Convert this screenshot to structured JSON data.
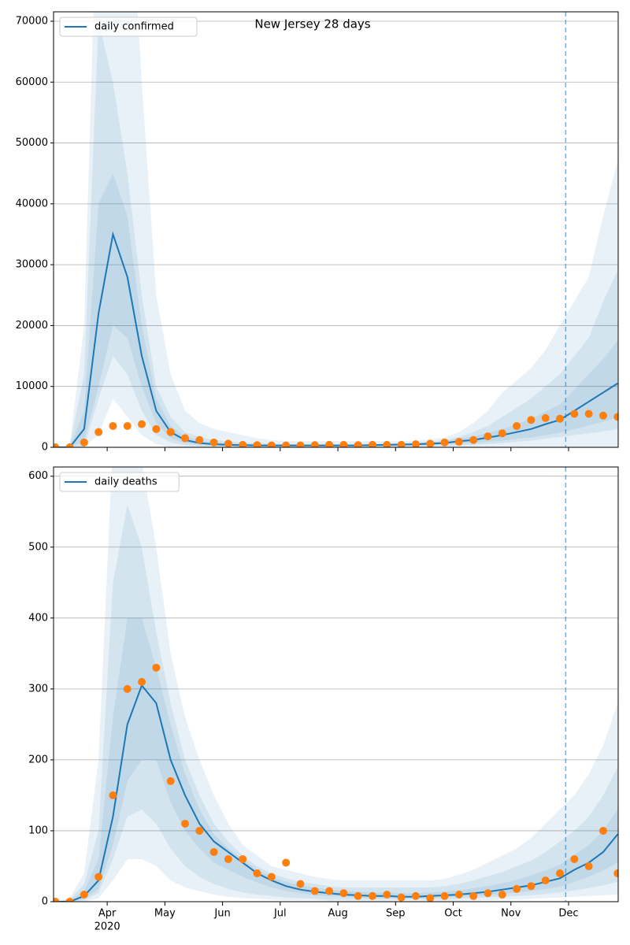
{
  "chart_data": [
    {
      "type": "line",
      "title": "New Jersey 28 days",
      "x": [
        3.1,
        3.35,
        3.6,
        3.85,
        4.1,
        4.35,
        4.6,
        4.85,
        5.1,
        5.35,
        5.6,
        5.85,
        6.1,
        6.35,
        6.6,
        6.85,
        7.1,
        7.35,
        7.6,
        7.85,
        8.1,
        8.35,
        8.6,
        8.85,
        9.1,
        9.35,
        9.6,
        9.85,
        10.1,
        10.35,
        10.6,
        10.85,
        11.1,
        11.35,
        11.6,
        11.85,
        12.1,
        12.35,
        12.6,
        12.85
      ],
      "series": [
        {
          "name": "daily confirmed",
          "color": "#1f77b4",
          "values": [
            0,
            0,
            3000,
            22000,
            35000,
            28000,
            15000,
            6000,
            2500,
            1200,
            700,
            500,
            400,
            350,
            300,
            300,
            300,
            300,
            300,
            300,
            300,
            300,
            350,
            400,
            450,
            500,
            600,
            700,
            1000,
            1200,
            1600,
            2000,
            2500,
            3000,
            3800,
            4500,
            6000,
            7500,
            9000,
            10500
          ]
        }
      ],
      "observed": {
        "color": "#ff7f0e",
        "values": [
          0,
          0,
          800,
          2500,
          3500,
          3500,
          3800,
          3000,
          2500,
          1500,
          1200,
          800,
          600,
          400,
          350,
          300,
          300,
          300,
          350,
          400,
          400,
          350,
          400,
          400,
          400,
          500,
          600,
          800,
          900,
          1200,
          1800,
          2300,
          3500,
          4500,
          4800,
          4700,
          5500,
          5500,
          5200,
          5000
        ]
      },
      "band_color": "#1f77b4",
      "bands": [
        {
          "hi": [
            0,
            200,
            20000,
            100000,
            100000,
            100000,
            60000,
            25000,
            12000,
            6000,
            4000,
            3000,
            2500,
            2000,
            1500,
            1200,
            1000,
            1000,
            1000,
            1000,
            1000,
            1000,
            1000,
            1000,
            1000,
            1100,
            1300,
            1600,
            2500,
            4000,
            6000,
            9000,
            11000,
            13000,
            16000,
            20000,
            24000,
            28000,
            38000,
            47000
          ],
          "lo": [
            0,
            0,
            0,
            2000,
            8000,
            5000,
            2000,
            500,
            0,
            0,
            0,
            0,
            0,
            0,
            0,
            0,
            0,
            0,
            0,
            0,
            0,
            0,
            0,
            0,
            0,
            0,
            0,
            0,
            0,
            0,
            0,
            0,
            0,
            0,
            0,
            0,
            0,
            0,
            0,
            0
          ]
        },
        {
          "hi": [
            0,
            100,
            12000,
            70000,
            60000,
            45000,
            25000,
            10000,
            5000,
            2500,
            1700,
            1200,
            1000,
            800,
            700,
            600,
            500,
            500,
            500,
            500,
            500,
            500,
            600,
            600,
            700,
            800,
            900,
            1200,
            1700,
            2500,
            3500,
            5000,
            6500,
            8000,
            10000,
            12000,
            15000,
            18000,
            24000,
            29000
          ],
          "lo": [
            0,
            0,
            0,
            8000,
            15000,
            12000,
            6000,
            2000,
            800,
            300,
            150,
            100,
            80,
            60,
            50,
            50,
            50,
            50,
            50,
            50,
            50,
            50,
            60,
            80,
            100,
            120,
            150,
            200,
            300,
            400,
            500,
            700,
            900,
            1100,
            1400,
            1700,
            2000,
            2300,
            2600,
            3000
          ]
        },
        {
          "hi": [
            0,
            50,
            6000,
            40000,
            45000,
            38000,
            20000,
            8000,
            3500,
            1800,
            1100,
            800,
            650,
            550,
            480,
            450,
            430,
            420,
            420,
            420,
            420,
            420,
            480,
            550,
            620,
            700,
            820,
            1000,
            1400,
            1800,
            2400,
            3000,
            3800,
            4700,
            5900,
            7000,
            9500,
            12000,
            14500,
            17500
          ],
          "lo": [
            0,
            0,
            1000,
            10000,
            20000,
            18000,
            10000,
            4000,
            1500,
            700,
            400,
            300,
            230,
            200,
            170,
            170,
            170,
            170,
            170,
            170,
            170,
            170,
            200,
            230,
            260,
            300,
            350,
            420,
            600,
            700,
            900,
            1100,
            1400,
            1600,
            2000,
            2400,
            3000,
            3600,
            4200,
            4900
          ]
        }
      ],
      "vline": 11.95,
      "xlim": [
        3.07,
        12.86
      ],
      "ylim": [
        0,
        71550
      ],
      "yticks": [
        0,
        10000,
        20000,
        30000,
        40000,
        50000,
        60000,
        70000
      ],
      "grid": true,
      "legend": "upper left"
    },
    {
      "type": "line",
      "x": [
        3.1,
        3.35,
        3.6,
        3.85,
        4.1,
        4.35,
        4.6,
        4.85,
        5.1,
        5.35,
        5.6,
        5.85,
        6.1,
        6.35,
        6.6,
        6.85,
        7.1,
        7.35,
        7.6,
        7.85,
        8.1,
        8.35,
        8.6,
        8.85,
        9.1,
        9.35,
        9.6,
        9.85,
        10.1,
        10.35,
        10.6,
        10.85,
        11.1,
        11.35,
        11.6,
        11.85,
        12.1,
        12.35,
        12.6,
        12.85
      ],
      "series": [
        {
          "name": "daily deaths",
          "color": "#1f77b4",
          "values": [
            0,
            0,
            8,
            30,
            120,
            250,
            305,
            280,
            200,
            150,
            110,
            85,
            70,
            55,
            40,
            30,
            22,
            17,
            14,
            12,
            10,
            9,
            8,
            8,
            7,
            7,
            8,
            9,
            10,
            12,
            14,
            17,
            20,
            23,
            28,
            33,
            45,
            55,
            70,
            95
          ]
        }
      ],
      "observed": {
        "color": "#ff7f0e",
        "values": [
          0,
          0,
          10,
          35,
          150,
          300,
          310,
          330,
          170,
          110,
          100,
          70,
          60,
          60,
          40,
          35,
          55,
          25,
          15,
          15,
          12,
          8,
          8,
          10,
          6,
          8,
          5,
          8,
          10,
          8,
          12,
          10,
          18,
          22,
          30,
          40,
          60,
          50,
          100,
          40
        ]
      },
      "band_color": "#1f77b4",
      "bands": [
        {
          "hi": [
            0,
            5,
            40,
            200,
            650,
            700,
            620,
            500,
            350,
            260,
            200,
            150,
            110,
            80,
            65,
            50,
            45,
            40,
            35,
            32,
            30,
            30,
            30,
            30,
            30,
            30,
            30,
            32,
            38,
            45,
            55,
            65,
            75,
            90,
            110,
            130,
            150,
            180,
            220,
            280
          ],
          "lo": [
            0,
            0,
            0,
            5,
            30,
            60,
            60,
            50,
            30,
            20,
            15,
            10,
            7,
            5,
            4,
            3,
            2,
            2,
            2,
            1,
            1,
            1,
            1,
            1,
            1,
            1,
            1,
            1,
            1,
            2,
            2,
            3,
            3,
            4,
            5,
            6,
            7,
            8,
            9,
            10
          ]
        },
        {
          "hi": [
            0,
            3,
            25,
            100,
            450,
            560,
            500,
            380,
            280,
            200,
            150,
            110,
            85,
            65,
            50,
            40,
            33,
            28,
            25,
            22,
            20,
            20,
            20,
            20,
            20,
            20,
            20,
            22,
            25,
            30,
            36,
            42,
            50,
            58,
            70,
            85,
            100,
            120,
            150,
            190
          ],
          "lo": [
            0,
            0,
            2,
            12,
            60,
            120,
            130,
            110,
            75,
            50,
            35,
            25,
            18,
            13,
            10,
            8,
            6,
            5,
            4,
            3,
            3,
            3,
            3,
            3,
            3,
            3,
            3,
            3,
            4,
            5,
            6,
            7,
            8,
            9,
            11,
            13,
            16,
            19,
            23,
            28
          ]
        },
        {
          "hi": [
            0,
            2,
            15,
            60,
            260,
            400,
            400,
            330,
            250,
            180,
            130,
            95,
            75,
            60,
            45,
            35,
            28,
            23,
            20,
            17,
            15,
            14,
            13,
            13,
            12,
            12,
            13,
            14,
            16,
            19,
            22,
            26,
            31,
            37,
            44,
            52,
            66,
            80,
            100,
            130
          ],
          "lo": [
            0,
            0,
            4,
            18,
            80,
            170,
            200,
            200,
            140,
            100,
            75,
            55,
            45,
            35,
            27,
            20,
            15,
            12,
            9,
            8,
            7,
            6,
            5,
            5,
            5,
            5,
            5,
            6,
            7,
            8,
            9,
            11,
            13,
            15,
            18,
            21,
            28,
            35,
            44,
            55
          ]
        }
      ],
      "vline": 11.95,
      "xlim": [
        3.07,
        12.86
      ],
      "ylim": [
        0,
        613
      ],
      "yticks": [
        0,
        100,
        200,
        300,
        400,
        500,
        600
      ],
      "xticks": [
        {
          "value": 4,
          "label": "Apr"
        },
        {
          "value": 5,
          "label": "May"
        },
        {
          "value": 6,
          "label": "Jun"
        },
        {
          "value": 7,
          "label": "Jul"
        },
        {
          "value": 8,
          "label": "Aug"
        },
        {
          "value": 9,
          "label": "Sep"
        },
        {
          "value": 10,
          "label": "Oct"
        },
        {
          "value": 11,
          "label": "Nov"
        },
        {
          "value": 12,
          "label": "Dec"
        }
      ],
      "x_year_label": "2020",
      "grid": true,
      "legend": "upper left"
    }
  ]
}
